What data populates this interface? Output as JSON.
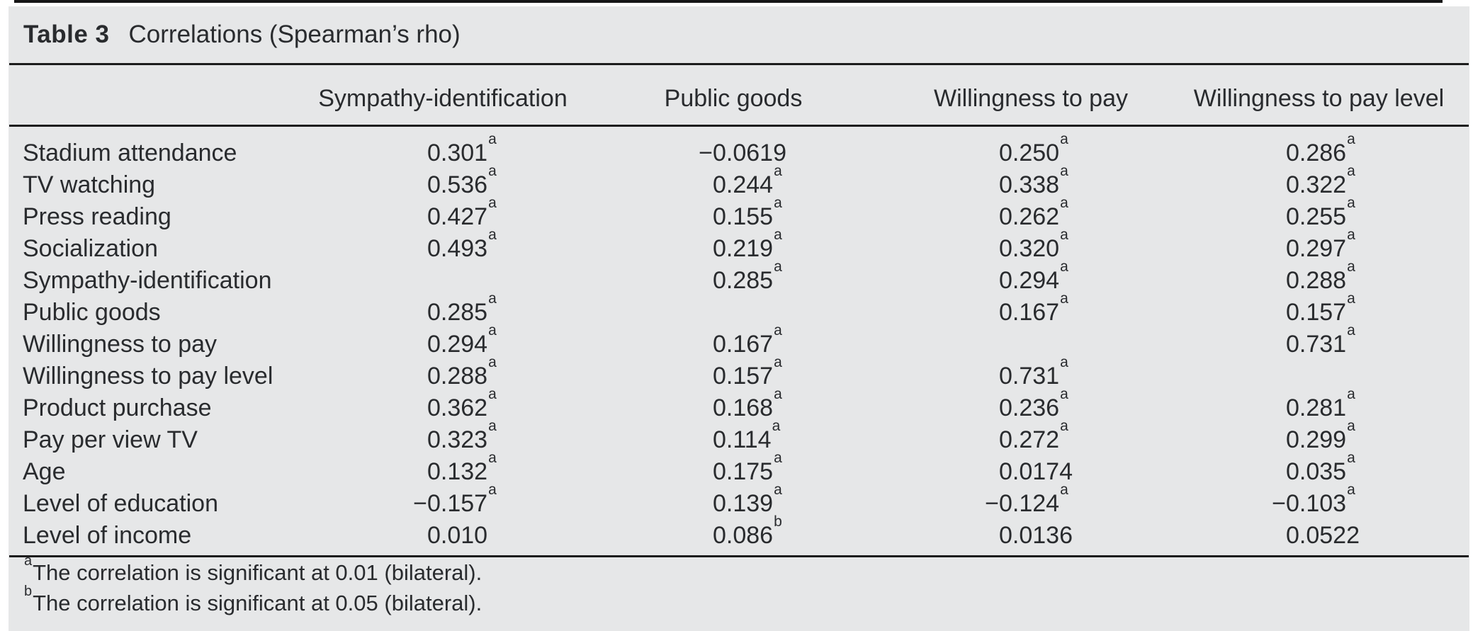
{
  "page": {
    "background": "#ffffff",
    "panel_background": "#e6e7e8",
    "text_color": "#292b2e",
    "rule_color": "#1c1c1c"
  },
  "table": {
    "title_label": "Table 3",
    "title_caption": "Correlations (Spearman’s rho)",
    "columns": [
      "",
      "Sympathy-identification",
      "Public goods",
      "Willingness to pay",
      "Willingness to pay level"
    ],
    "rows": [
      {
        "label": "Stadium attendance",
        "values": [
          {
            "v": "0.301",
            "s": "a"
          },
          {
            "v": "−0.0619",
            "s": ""
          },
          {
            "v": "0.250",
            "s": "a"
          },
          {
            "v": "0.286",
            "s": "a"
          }
        ]
      },
      {
        "label": "TV watching",
        "values": [
          {
            "v": "0.536",
            "s": "a"
          },
          {
            "v": "0.244",
            "s": "a"
          },
          {
            "v": "0.338",
            "s": "a"
          },
          {
            "v": "0.322",
            "s": "a"
          }
        ]
      },
      {
        "label": "Press reading",
        "values": [
          {
            "v": "0.427",
            "s": "a"
          },
          {
            "v": "0.155",
            "s": "a"
          },
          {
            "v": "0.262",
            "s": "a"
          },
          {
            "v": "0.255",
            "s": "a"
          }
        ]
      },
      {
        "label": "Socialization",
        "values": [
          {
            "v": "0.493",
            "s": "a"
          },
          {
            "v": "0.219",
            "s": "a"
          },
          {
            "v": "0.320",
            "s": "a"
          },
          {
            "v": "0.297",
            "s": "a"
          }
        ]
      },
      {
        "label": "Sympathy-identification",
        "values": [
          null,
          {
            "v": "0.285",
            "s": "a"
          },
          {
            "v": "0.294",
            "s": "a"
          },
          {
            "v": "0.288",
            "s": "a"
          }
        ]
      },
      {
        "label": "Public goods",
        "values": [
          {
            "v": "0.285",
            "s": "a"
          },
          null,
          {
            "v": "0.167",
            "s": "a"
          },
          {
            "v": "0.157",
            "s": "a"
          }
        ]
      },
      {
        "label": "Willingness to pay",
        "values": [
          {
            "v": "0.294",
            "s": "a"
          },
          {
            "v": "0.167",
            "s": "a"
          },
          null,
          {
            "v": "0.731",
            "s": "a"
          }
        ]
      },
      {
        "label": "Willingness to pay level",
        "values": [
          {
            "v": "0.288",
            "s": "a"
          },
          {
            "v": "0.157",
            "s": "a"
          },
          {
            "v": "0.731",
            "s": "a"
          },
          null
        ]
      },
      {
        "label": "Product purchase",
        "values": [
          {
            "v": "0.362",
            "s": "a"
          },
          {
            "v": "0.168",
            "s": "a"
          },
          {
            "v": "0.236",
            "s": "a"
          },
          {
            "v": "0.281",
            "s": "a"
          }
        ]
      },
      {
        "label": "Pay per view TV",
        "values": [
          {
            "v": "0.323",
            "s": "a"
          },
          {
            "v": "0.114",
            "s": "a"
          },
          {
            "v": "0.272",
            "s": "a"
          },
          {
            "v": "0.299",
            "s": "a"
          }
        ]
      },
      {
        "label": "Age",
        "values": [
          {
            "v": "0.132",
            "s": "a"
          },
          {
            "v": "0.175",
            "s": "a"
          },
          {
            "v": "0.0174",
            "s": ""
          },
          {
            "v": "0.035",
            "s": "a"
          }
        ]
      },
      {
        "label": "Level of education",
        "values": [
          {
            "v": "−0.157",
            "s": "a"
          },
          {
            "v": "0.139",
            "s": "a"
          },
          {
            "v": "−0.124",
            "s": "a"
          },
          {
            "v": "−0.103",
            "s": "a"
          }
        ]
      },
      {
        "label": "Level of income",
        "values": [
          {
            "v": "0.010",
            "s": ""
          },
          {
            "v": "0.086",
            "s": "b"
          },
          {
            "v": "0.0136",
            "s": ""
          },
          {
            "v": "0.0522",
            "s": ""
          }
        ]
      }
    ],
    "footnotes": [
      {
        "marker": "a",
        "text": "The correlation is significant at 0.01 (bilateral)."
      },
      {
        "marker": "b",
        "text": "The correlation is significant at 0.05 (bilateral)."
      }
    ]
  }
}
